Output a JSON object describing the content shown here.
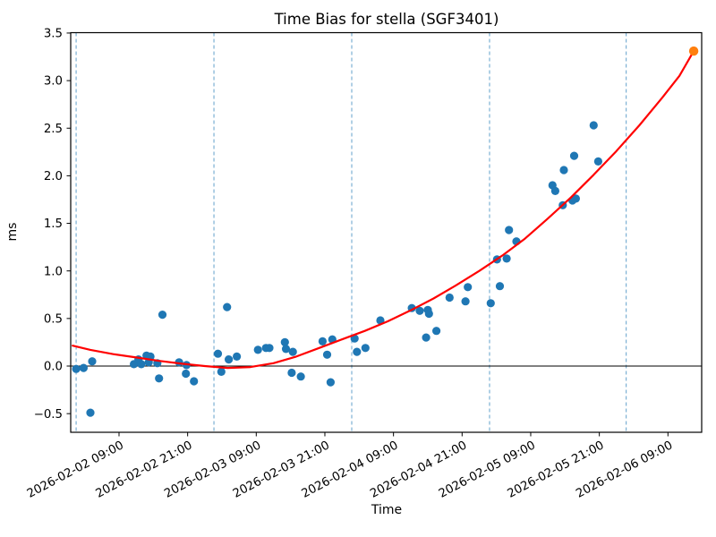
{
  "title": "Time Bias for stella (SGF3401)",
  "axes": {
    "xlabel": "Time",
    "ylabel": "ms"
  },
  "chart_data": {
    "type": "scatter",
    "title": "Time Bias for stella (SGF3401)",
    "xlabel": "Time",
    "ylabel": "ms",
    "x_unit": "hours since 2026-02-02 00:00",
    "xlim_hours": [
      0.55,
      110.9
    ],
    "ylim": [
      -0.696,
      3.504
    ],
    "grid": false,
    "legend_position": "none",
    "x_ticks": [
      {
        "t": 9,
        "label": "2026-02-02 09:00"
      },
      {
        "t": 21,
        "label": "2026-02-02 21:00"
      },
      {
        "t": 33,
        "label": "2026-02-03 09:00"
      },
      {
        "t": 45,
        "label": "2026-02-03 21:00"
      },
      {
        "t": 57,
        "label": "2026-02-04 09:00"
      },
      {
        "t": 69,
        "label": "2026-02-04 21:00"
      },
      {
        "t": 81,
        "label": "2026-02-05 09:00"
      },
      {
        "t": 93,
        "label": "2026-02-05 21:00"
      },
      {
        "t": 105,
        "label": "2026-02-06 09:00"
      }
    ],
    "y_ticks": [
      {
        "v": -0.5,
        "label": "−0.5"
      },
      {
        "v": 0.0,
        "label": "0.0"
      },
      {
        "v": 0.5,
        "label": "0.5"
      },
      {
        "v": 1.0,
        "label": "1.0"
      },
      {
        "v": 1.5,
        "label": "1.5"
      },
      {
        "v": 2.0,
        "label": "2.0"
      },
      {
        "v": 2.5,
        "label": "2.5"
      },
      {
        "v": 3.0,
        "label": "3.0"
      },
      {
        "v": 3.5,
        "label": "3.5"
      }
    ],
    "vlines_hours": [
      1.5,
      25.6,
      49.7,
      73.8,
      97.7
    ],
    "zero_line_y": 0.0,
    "series": [
      {
        "name": "time-bias-observations",
        "type": "scatter",
        "color": "#1f77b4",
        "marker_radius": 4.6,
        "points": [
          [
            1.5,
            -0.03
          ],
          [
            2.8,
            -0.02
          ],
          [
            4.3,
            0.05
          ],
          [
            4.0,
            -0.49
          ],
          [
            11.6,
            0.02
          ],
          [
            12.4,
            0.07
          ],
          [
            12.9,
            0.02
          ],
          [
            13.8,
            0.11
          ],
          [
            14.2,
            0.04
          ],
          [
            14.5,
            0.1
          ],
          [
            15.7,
            0.03
          ],
          [
            16.6,
            0.54
          ],
          [
            16.0,
            -0.13
          ],
          [
            19.5,
            0.04
          ],
          [
            20.8,
            0.01
          ],
          [
            20.7,
            -0.08
          ],
          [
            22.1,
            -0.16
          ],
          [
            26.3,
            0.13
          ],
          [
            26.9,
            -0.06
          ],
          [
            27.9,
            0.62
          ],
          [
            28.2,
            0.07
          ],
          [
            29.6,
            0.1
          ],
          [
            33.3,
            0.17
          ],
          [
            34.7,
            0.19
          ],
          [
            35.3,
            0.19
          ],
          [
            38.0,
            0.25
          ],
          [
            38.2,
            0.18
          ],
          [
            39.4,
            0.15
          ],
          [
            39.2,
            -0.07
          ],
          [
            40.8,
            -0.11
          ],
          [
            44.6,
            0.26
          ],
          [
            45.4,
            0.12
          ],
          [
            46.0,
            -0.17
          ],
          [
            46.3,
            0.28
          ],
          [
            50.2,
            0.29
          ],
          [
            50.6,
            0.15
          ],
          [
            52.1,
            0.19
          ],
          [
            54.7,
            0.48
          ],
          [
            60.2,
            0.61
          ],
          [
            61.6,
            0.58
          ],
          [
            62.7,
            0.3
          ],
          [
            63.0,
            0.59
          ],
          [
            63.2,
            0.55
          ],
          [
            64.5,
            0.37
          ],
          [
            66.8,
            0.72
          ],
          [
            69.6,
            0.68
          ],
          [
            70.0,
            0.83
          ],
          [
            74.0,
            0.66
          ],
          [
            75.1,
            1.12
          ],
          [
            75.6,
            0.84
          ],
          [
            76.8,
            1.13
          ],
          [
            77.2,
            1.43
          ],
          [
            78.5,
            1.31
          ],
          [
            84.8,
            1.9
          ],
          [
            85.3,
            1.84
          ],
          [
            86.6,
            1.69
          ],
          [
            86.8,
            2.06
          ],
          [
            88.3,
            1.74
          ],
          [
            88.6,
            2.21
          ],
          [
            88.9,
            1.76
          ],
          [
            92.0,
            2.53
          ],
          [
            92.8,
            2.15
          ]
        ]
      },
      {
        "name": "extrapolated-point",
        "type": "scatter",
        "color": "#ff7f0e",
        "marker_radius": 5.2,
        "points": [
          [
            109.5,
            3.31
          ]
        ]
      },
      {
        "name": "polynomial-fit",
        "type": "line",
        "color": "#ff0000",
        "line_width": 2.2,
        "points": [
          [
            0.9,
            0.215
          ],
          [
            4,
            0.17
          ],
          [
            8,
            0.125
          ],
          [
            12,
            0.09
          ],
          [
            16,
            0.055
          ],
          [
            20,
            0.025
          ],
          [
            24,
            0.0
          ],
          [
            28,
            -0.02
          ],
          [
            32,
            -0.01
          ],
          [
            36,
            0.03
          ],
          [
            40,
            0.1
          ],
          [
            44,
            0.19
          ],
          [
            48,
            0.28
          ],
          [
            52,
            0.37
          ],
          [
            56,
            0.47
          ],
          [
            60,
            0.585
          ],
          [
            64,
            0.71
          ],
          [
            68,
            0.85
          ],
          [
            72,
            1.0
          ],
          [
            76,
            1.16
          ],
          [
            80,
            1.34
          ],
          [
            84,
            1.55
          ],
          [
            88,
            1.77
          ],
          [
            92,
            2.01
          ],
          [
            96,
            2.26
          ],
          [
            100,
            2.53
          ],
          [
            104,
            2.82
          ],
          [
            107,
            3.05
          ],
          [
            109.5,
            3.31
          ]
        ]
      }
    ],
    "styles": {
      "vline_color": "#62a0cb",
      "vline_dash": "4 3",
      "zero_line_color": "#000000",
      "spine_color": "#000000",
      "tick_color": "#000000",
      "background": "#ffffff"
    }
  }
}
